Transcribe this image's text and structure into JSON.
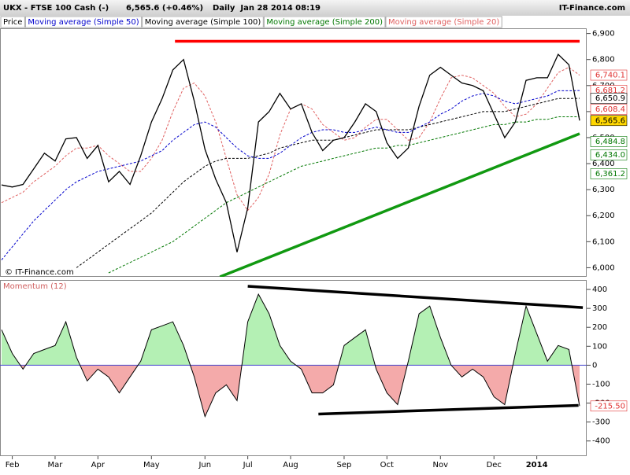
{
  "header": {
    "symbol": "UKX - FTSE 100 Cash (-)",
    "last": "6,565.6 (+0.46%)",
    "period": "Daily  Jan 28 2014 08:19",
    "brand": "IT-Finance.com"
  },
  "chart_data": [
    {
      "type": "line",
      "watermark": "© IT-Finance.com",
      "series": [
        {
          "name": "Price",
          "color": "#000000",
          "dashed": false,
          "values": [
            6318,
            6310,
            6320,
            6380,
            6440,
            6410,
            6495,
            6500,
            6420,
            6470,
            6330,
            6370,
            6320,
            6430,
            6560,
            6650,
            6760,
            6800,
            6640,
            6455,
            6340,
            6250,
            6060,
            6230,
            6560,
            6600,
            6670,
            6610,
            6630,
            6520,
            6450,
            6490,
            6500,
            6560,
            6630,
            6600,
            6480,
            6420,
            6460,
            6620,
            6740,
            6770,
            6740,
            6710,
            6700,
            6680,
            6590,
            6500,
            6560,
            6720,
            6730,
            6730,
            6820,
            6780,
            6565.6
          ]
        },
        {
          "name": "Moving average (Simple 50)",
          "color": "#0000cc",
          "dashed": true,
          "values": [
            6030,
            6080,
            6130,
            6180,
            6220,
            6260,
            6300,
            6330,
            6350,
            6370,
            6380,
            6390,
            6400,
            6410,
            6430,
            6450,
            6490,
            6520,
            6550,
            6560,
            6540,
            6500,
            6460,
            6430,
            6420,
            6420,
            6440,
            6470,
            6500,
            6520,
            6530,
            6530,
            6520,
            6520,
            6530,
            6540,
            6530,
            6520,
            6520,
            6540,
            6560,
            6590,
            6610,
            6640,
            6660,
            6670,
            6660,
            6640,
            6630,
            6640,
            6650,
            6660,
            6680,
            6680,
            6681
          ]
        },
        {
          "name": "Moving average (Simple 100)",
          "color": "#000000",
          "dashed": true,
          "values": [
            null,
            null,
            null,
            null,
            null,
            null,
            null,
            6000,
            6030,
            6060,
            6090,
            6120,
            6150,
            6180,
            6210,
            6250,
            6290,
            6330,
            6360,
            6390,
            6410,
            6420,
            6420,
            6420,
            6430,
            6440,
            6460,
            6470,
            6480,
            6490,
            6490,
            6490,
            6500,
            6510,
            6520,
            6530,
            6530,
            6530,
            6530,
            6540,
            6550,
            6560,
            6570,
            6580,
            6590,
            6600,
            6600,
            6600,
            6610,
            6620,
            6630,
            6640,
            6650,
            6650,
            6651
          ]
        },
        {
          "name": "Moving average (Simple 200)",
          "color": "#007700",
          "dashed": true,
          "values": [
            null,
            null,
            null,
            null,
            null,
            null,
            null,
            null,
            null,
            null,
            5980,
            6000,
            6020,
            6040,
            6060,
            6080,
            6100,
            6130,
            6160,
            6190,
            6220,
            6250,
            6270,
            6290,
            6310,
            6330,
            6350,
            6370,
            6390,
            6400,
            6410,
            6420,
            6430,
            6440,
            6450,
            6460,
            6460,
            6470,
            6470,
            6480,
            6490,
            6500,
            6510,
            6520,
            6530,
            6540,
            6550,
            6550,
            6560,
            6560,
            6570,
            6570,
            6580,
            6580,
            6580
          ]
        },
        {
          "name": "Moving average (Simple 20)",
          "color": "#e06060",
          "dashed": true,
          "values": [
            6250,
            6270,
            6290,
            6330,
            6360,
            6390,
            6430,
            6460,
            6460,
            6470,
            6430,
            6400,
            6370,
            6370,
            6420,
            6490,
            6600,
            6690,
            6710,
            6660,
            6560,
            6420,
            6280,
            6220,
            6270,
            6360,
            6510,
            6610,
            6630,
            6610,
            6550,
            6520,
            6490,
            6500,
            6540,
            6570,
            6570,
            6530,
            6490,
            6500,
            6560,
            6650,
            6730,
            6740,
            6730,
            6700,
            6670,
            6620,
            6580,
            6590,
            6630,
            6690,
            6750,
            6770,
            6740
          ]
        }
      ],
      "ylim": [
        5965,
        6920
      ],
      "yticks": [
        {
          "value": 6000,
          "label": "6,000"
        },
        {
          "value": 6100,
          "label": "6,100"
        },
        {
          "value": 6200,
          "label": "6,200"
        },
        {
          "value": 6300,
          "label": "6,300"
        },
        {
          "value": 6400,
          "label": "6,400"
        },
        {
          "value": 6500,
          "label": "6,500"
        },
        {
          "value": 6600,
          "label": "6,600"
        },
        {
          "value": 6700,
          "label": "6,700"
        },
        {
          "value": 6800,
          "label": "6,800"
        },
        {
          "value": 6900,
          "label": "6,900"
        }
      ],
      "side_labels": [
        {
          "value": 6740.1,
          "label": "6,740.1",
          "color": "#e03030"
        },
        {
          "value": 6681.2,
          "label": "6,681.2",
          "color": "#e03030"
        },
        {
          "value": 6650.9,
          "label": "6,650.9",
          "color": "#000000"
        },
        {
          "value": 6608.4,
          "label": "6,608.4",
          "color": "#e03030"
        },
        {
          "value": 6565.6,
          "label": "6,565.6",
          "color": "#000000",
          "highlight": "#ffd700"
        },
        {
          "value": 6484.8,
          "label": "6,484.8",
          "color": "#007700"
        },
        {
          "value": 6434.0,
          "label": "6,434.0",
          "color": "#007700"
        },
        {
          "value": 6361.2,
          "label": "6,361.2",
          "color": "#007700"
        }
      ],
      "trendlines": [
        {
          "color": "#ff0000",
          "points": [
            [
              16.2,
              6870
            ],
            [
              54,
              6870
            ]
          ]
        },
        {
          "color": "#119911",
          "points": [
            [
              20.4,
              5965
            ],
            [
              54,
              6515
            ]
          ]
        }
      ]
    },
    {
      "type": "area",
      "title": "Momentum (12)",
      "categories": [
        null,
        "Feb",
        null,
        null,
        null,
        "Mar",
        null,
        null,
        null,
        "Apr",
        null,
        null,
        null,
        null,
        "May",
        null,
        null,
        null,
        null,
        "Jun",
        null,
        null,
        null,
        "Jul",
        null,
        null,
        null,
        "Aug",
        null,
        null,
        null,
        null,
        "Sep",
        null,
        null,
        null,
        "Oct",
        null,
        null,
        null,
        null,
        "Nov",
        null,
        null,
        null,
        null,
        "Dec",
        null,
        null,
        null,
        "2014",
        null,
        null,
        null,
        null
      ],
      "values": [
        187,
        62,
        -21,
        62,
        83,
        104,
        229,
        42,
        -83,
        -21,
        -62,
        -146,
        -62,
        21,
        187,
        208,
        229,
        104,
        -62,
        -271,
        -146,
        -104,
        -187,
        229,
        375,
        271,
        104,
        21,
        -21,
        -146,
        -146,
        -104,
        104,
        146,
        187,
        -21,
        -146,
        -208,
        21,
        271,
        312,
        146,
        0,
        -62,
        -21,
        -62,
        -167,
        -208,
        62,
        312,
        167,
        21,
        104,
        83,
        -215.5
      ],
      "up_color": "#b4f0b4",
      "down_color": "#f4aaaa",
      "ylim": [
        -480,
        450
      ],
      "yticks": [
        400,
        300,
        200,
        100,
        0,
        -100,
        -200,
        -300,
        -400
      ],
      "side_labels": [
        {
          "value": -215.5,
          "label": "-215.50",
          "color": "#e03030"
        }
      ],
      "trendlines": [
        {
          "color": "#000000",
          "points": [
            [
              23,
              417
            ],
            [
              54.3,
              304
            ]
          ]
        },
        {
          "color": "#000000",
          "points": [
            [
              29.6,
              -258
            ],
            [
              53.9,
              -212
            ]
          ]
        }
      ]
    }
  ]
}
